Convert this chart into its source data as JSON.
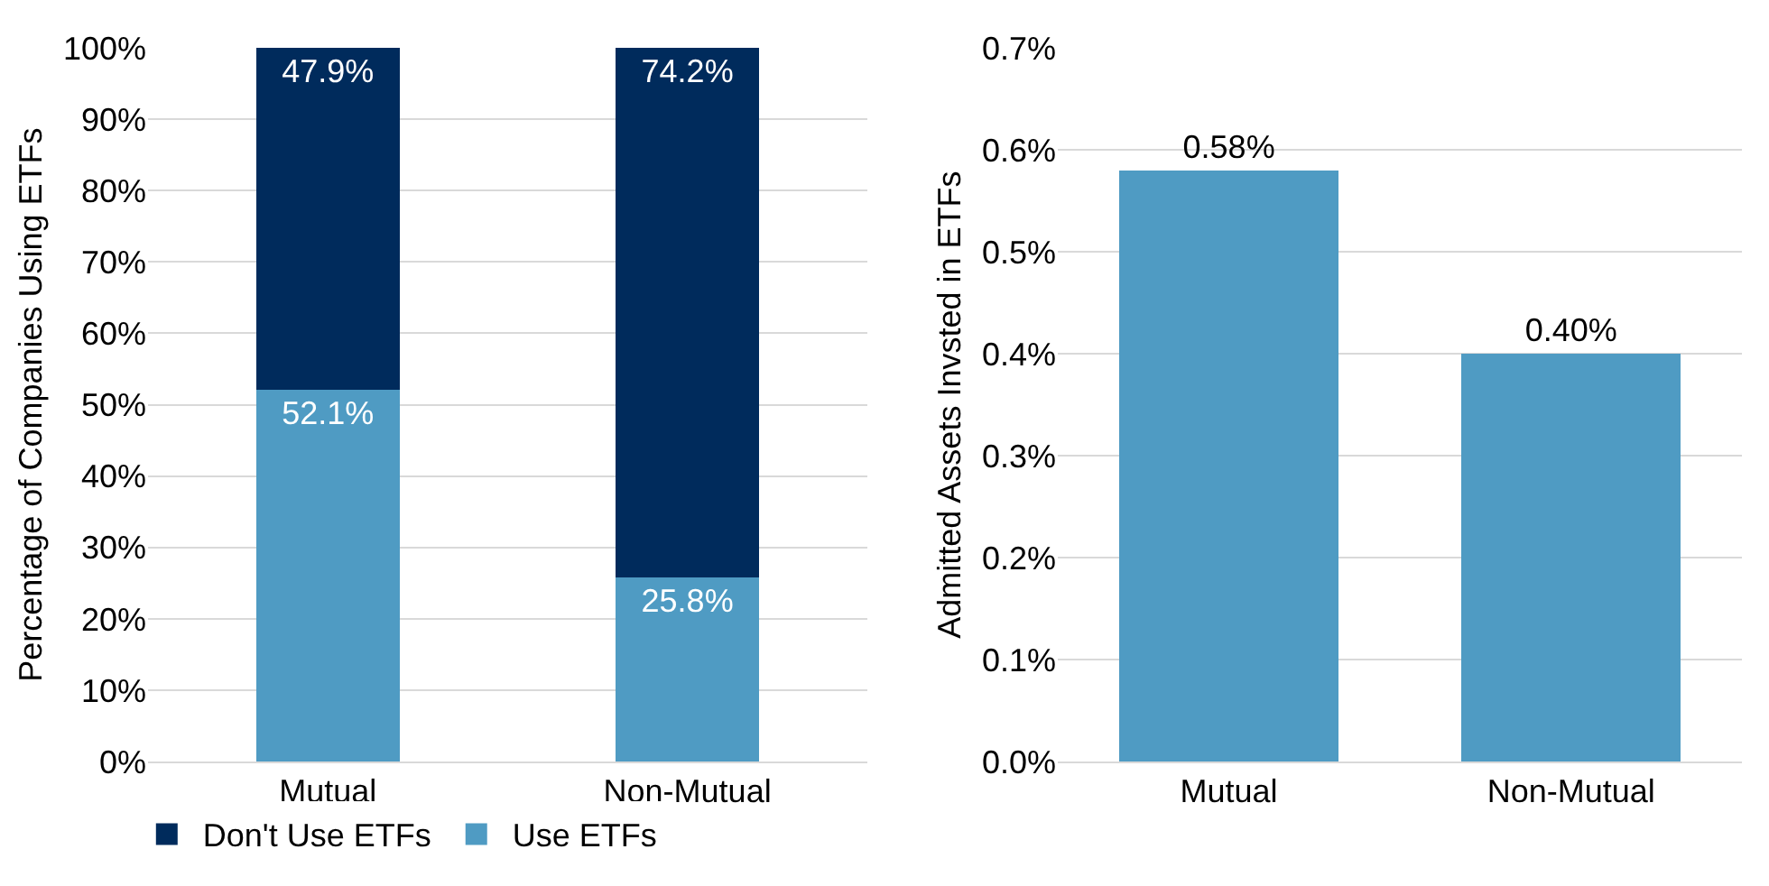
{
  "chart_data": [
    {
      "type": "bar",
      "stacked": true,
      "categories": [
        "Mutual",
        "Non-Mutual"
      ],
      "ylabel": "Percentage of Companies Using ETFs",
      "series": [
        {
          "name": "Use ETFs",
          "color": "#4f9bc3",
          "values": [
            52.1,
            25.8
          ],
          "value_labels": [
            "52.1%",
            "25.8%"
          ]
        },
        {
          "name": "Don't Use ETFs",
          "color": "#002b5c",
          "values": [
            47.9,
            74.2
          ],
          "value_labels": [
            "47.9%",
            "74.2%"
          ]
        }
      ],
      "ylim": [
        0,
        100
      ],
      "yticks": [
        {
          "value": 0,
          "label": "0%"
        },
        {
          "value": 10,
          "label": "10%"
        },
        {
          "value": 20,
          "label": "20%"
        },
        {
          "value": 30,
          "label": "30%"
        },
        {
          "value": 40,
          "label": "40%"
        },
        {
          "value": 50,
          "label": "50%"
        },
        {
          "value": 60,
          "label": "60%"
        },
        {
          "value": 70,
          "label": "70%"
        },
        {
          "value": 80,
          "label": "80%"
        },
        {
          "value": 90,
          "label": "90%"
        },
        {
          "value": 100,
          "label": "100%"
        }
      ],
      "grid": "y",
      "legend": "bottom"
    },
    {
      "type": "bar",
      "categories": [
        "Mutual",
        "Non-Mutual"
      ],
      "ylabel": "Admitted Assets Invsted in ETFs",
      "series": [
        {
          "color": "#4f9bc3",
          "values": [
            0.58,
            0.4
          ],
          "value_labels": [
            "0.58%",
            "0.40%"
          ]
        }
      ],
      "ylim": [
        0,
        0.7
      ],
      "yticks": [
        {
          "value": 0,
          "label": "0.0%"
        },
        {
          "value": 0.1,
          "label": "0.1%"
        },
        {
          "value": 0.2,
          "label": "0.2%"
        },
        {
          "value": 0.3,
          "label": "0.3%"
        },
        {
          "value": 0.4,
          "label": "0.4%"
        },
        {
          "value": 0.5,
          "label": "0.5%"
        },
        {
          "value": 0.6,
          "label": "0.6%"
        },
        {
          "value": 0.7,
          "label": "0.7%"
        }
      ],
      "grid": "y",
      "legend": false
    }
  ]
}
